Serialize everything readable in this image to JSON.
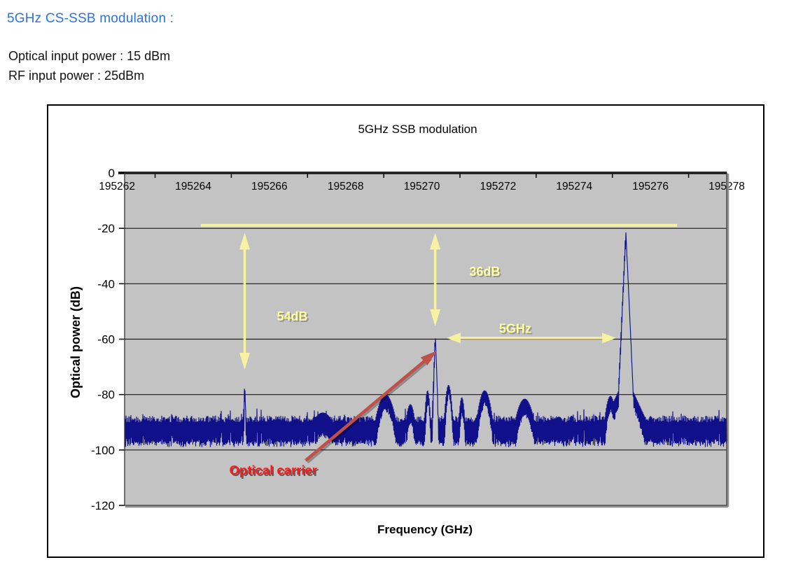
{
  "header": {
    "title": "5GHz CS-SSB modulation :",
    "optical_input": "Optical input power : 15 dBm",
    "rf_input": "RF input power : 25dBm"
  },
  "colors": {
    "heading_blue": "#2b72d9",
    "body_text": "#111111",
    "plot_bg": "#c3c3c3",
    "trace_navy": "#10108a",
    "grid_black": "#1a1a1a",
    "annotation_yellow": "#f6f2a2",
    "annotation_yellow_text": "#ffff9e",
    "annotation_shadow": "#8e8e8e",
    "carrier_red_text": "#ff1a1a",
    "carrier_arrow_red": "#c05048"
  },
  "chart_data": {
    "type": "line",
    "title": "5GHz SSB modulation",
    "xlabel": "Frequency (GHz)",
    "ylabel": "Optical power (dB)",
    "x_ticks": [
      195262,
      195264,
      195266,
      195268,
      195270,
      195272,
      195274,
      195276,
      195278
    ],
    "x_minor_ticks": [
      195263,
      195265,
      195267,
      195269,
      195271,
      195273,
      195275,
      195277
    ],
    "y_ticks": [
      0,
      -20,
      -40,
      -60,
      -80,
      -100,
      -120
    ],
    "x_range": [
      195262.2,
      195278.0
    ],
    "y_range": [
      0,
      -120
    ],
    "grid": true,
    "legend": "none",
    "noise_floor": {
      "top_db": -88.8,
      "bottom_db": -96.8
    },
    "peaks": [
      {
        "name": "lower-sideband",
        "f_ghz": 195265.35,
        "peak_db": -74.5,
        "slope_db_per_ghz": 400
      },
      {
        "name": "optical-carrier",
        "f_ghz": 195270.35,
        "peak_db": -57.0,
        "slope_db_per_ghz": 380
      },
      {
        "name": "ssb-tone",
        "f_ghz": 195275.35,
        "peak_db": -20.2,
        "slope_db_per_ghz": 300,
        "skirt_top_db": -73,
        "skirt_slope_db_per_ghz": 30
      }
    ],
    "humps": [
      [
        195267.4,
        -86.5,
        0.35
      ],
      [
        195269.05,
        -80.0,
        0.22
      ],
      [
        195269.7,
        -83.5,
        0.12
      ],
      [
        195270.15,
        -78.5,
        0.06
      ],
      [
        195270.7,
        -76.5,
        0.08
      ],
      [
        195271.05,
        -81.0,
        0.07
      ],
      [
        195271.65,
        -78.5,
        0.16
      ],
      [
        195272.7,
        -81.5,
        0.22
      ],
      [
        195273.6,
        -88.0,
        0.2
      ],
      [
        195274.95,
        -80.5,
        0.13
      ]
    ],
    "annotations": {
      "ref_line_db": -18.9,
      "ref_line_f": [
        195264.2,
        195276.7
      ],
      "arrows": [
        {
          "name": "suppression-54db",
          "orient": "v",
          "f_ghz": 195265.35,
          "from_db": -21.6,
          "to_db": -71.0,
          "label": "54dB",
          "label_pos": [
            195266.6,
            -51.8
          ]
        },
        {
          "name": "suppression-36db",
          "orient": "v",
          "f_ghz": 195270.35,
          "from_db": -21.6,
          "to_db": -55.3,
          "label": "36dB",
          "label_pos": [
            195271.65,
            -35.6
          ]
        },
        {
          "name": "offset-5ghz",
          "orient": "h",
          "db": -59.6,
          "from_f": 195270.65,
          "to_f": 195275.1,
          "label": "5GHz",
          "label_pos": [
            195272.45,
            -56.2
          ]
        }
      ],
      "callout": {
        "label": "Optical carrier",
        "tail": [
          195266.95,
          -103.8
        ],
        "tip": [
          195270.2,
          -66.4
        ],
        "label_pos": [
          195266.1,
          -107.4
        ]
      }
    }
  }
}
